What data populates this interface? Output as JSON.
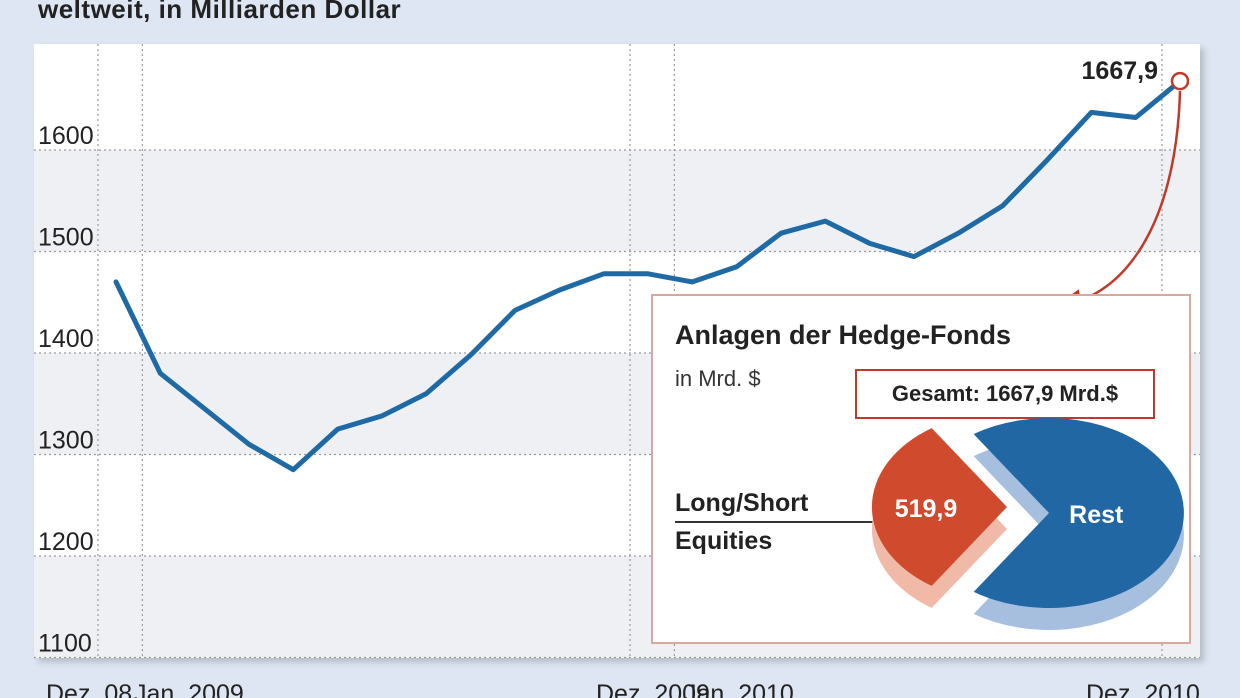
{
  "header": {
    "subtitle": "weltweit, in Milliarden Dollar"
  },
  "chart_data": {
    "type": "line",
    "title": "",
    "xlabel": "",
    "ylabel": "",
    "y_ticks": [
      "1100",
      "1200",
      "1300",
      "1400",
      "1500",
      "1600"
    ],
    "ylim": [
      1080,
      1720
    ],
    "x_tick_labels": [
      "Dez. 08",
      "Jan. 2009",
      "Dez. 2009",
      "Jan. 2010",
      "Dez. 2010"
    ],
    "x_tick_index": [
      0,
      1,
      12,
      13,
      24
    ],
    "grid": true,
    "series": [
      {
        "color": "#1f6aa5",
        "values": [
          1470,
          1380,
          1345,
          1310,
          1285,
          1325,
          1338,
          1360,
          1398,
          1442,
          1462,
          1478,
          1478,
          1470,
          1485,
          1518,
          1530,
          1508,
          1495,
          1518,
          1545,
          1590,
          1637,
          1632,
          1667.9
        ]
      }
    ],
    "end_label": "1667,9"
  },
  "inset": {
    "title": "Anlagen der Hedge-Fonds",
    "unit": "in Mrd. $",
    "total": "Gesamt:  1667,9 Mrd.$",
    "pie": {
      "type": "pie",
      "slices": [
        {
          "label": "Long/Short Equities",
          "value": 519.9,
          "display": "519,9",
          "color": "#d04a2e"
        },
        {
          "label": "Rest",
          "value": 1148.0,
          "display": "Rest",
          "color": "#2067a4"
        }
      ]
    },
    "label_line1": "Long/Short",
    "label_line2": "Equities"
  },
  "colors": {
    "background": "#dde6f2",
    "line": "#1f6aa5",
    "accent": "#c0392b",
    "pie_shadow": "#a7bfdf"
  }
}
